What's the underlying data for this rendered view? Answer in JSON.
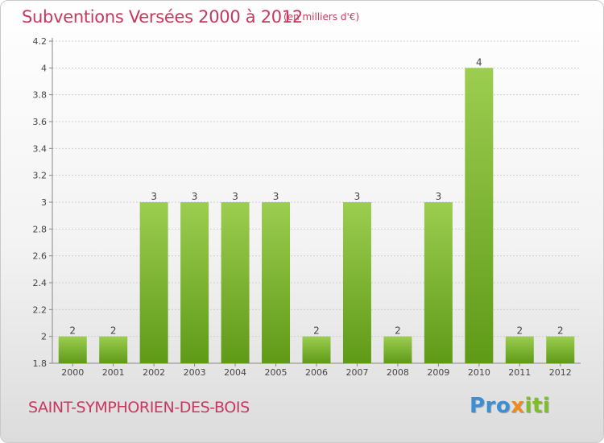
{
  "header": {
    "title": "Subventions Versées 2000 à 2012",
    "subtitle": "(en milliers d'€)"
  },
  "footer": {
    "town": "SAINT-SYMPHORIEN-DES-BOIS",
    "logo_parts": [
      "Pro",
      "x",
      "iti"
    ]
  },
  "colors": {
    "accent": "#c8385e",
    "bar_top": "#9ccd50",
    "bar_bottom": "#5f9a17",
    "grid": "#cfcfcf"
  },
  "chart_data": {
    "type": "bar",
    "categories": [
      "2000",
      "2001",
      "2002",
      "2003",
      "2004",
      "2005",
      "2006",
      "2007",
      "2008",
      "2009",
      "2010",
      "2011",
      "2012"
    ],
    "values": [
      2,
      2,
      3,
      3,
      3,
      3,
      2,
      3,
      2,
      3,
      4,
      2,
      2
    ],
    "data_labels": [
      "2",
      "2",
      "3",
      "3",
      "3",
      "3",
      "2",
      "3",
      "2",
      "3",
      "4",
      "2",
      "2"
    ],
    "yticks": [
      1.8,
      2,
      2.2,
      2.4,
      2.6,
      2.8,
      3,
      3.2,
      3.4,
      3.6,
      3.8,
      4,
      4.2
    ],
    "ytick_labels": [
      "1.8",
      "2",
      "2.2",
      "2.4",
      "2.6",
      "2.8",
      "3",
      "3.2",
      "3.4",
      "3.6",
      "3.8",
      "4",
      "4.2"
    ],
    "ylim": [
      1.8,
      4.2
    ],
    "grid": true,
    "title": "Subventions Versées 2000 à 2012",
    "xlabel": "",
    "ylabel": ""
  }
}
